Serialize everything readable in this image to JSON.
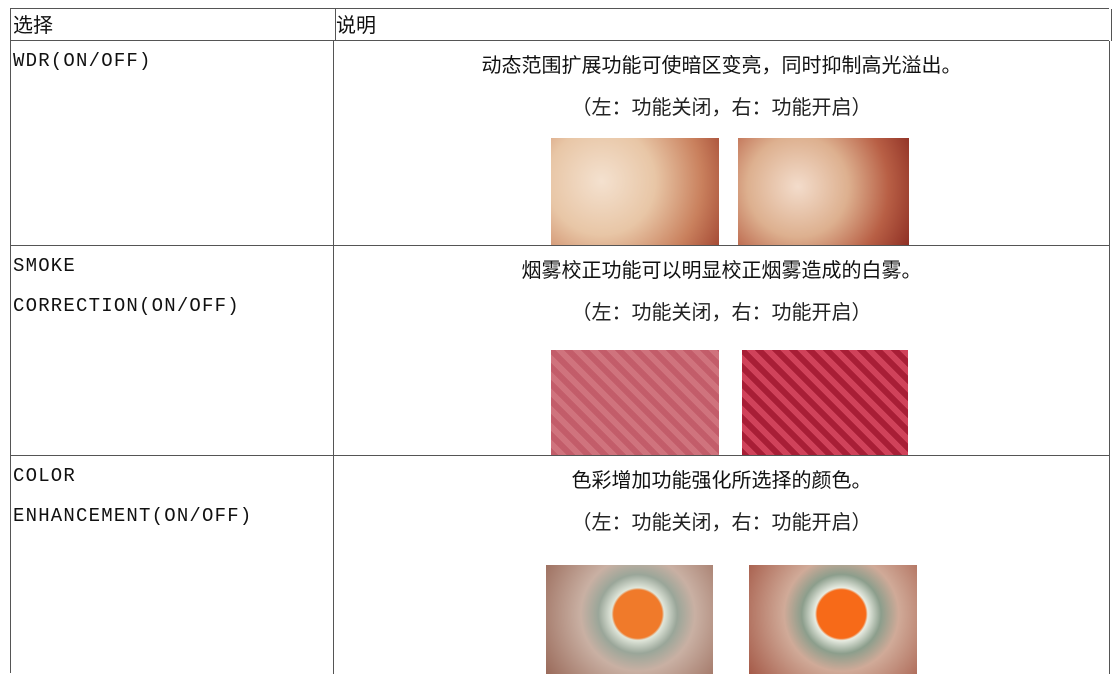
{
  "table": {
    "header": [
      "选择",
      "说明"
    ],
    "rows": [
      {
        "option": "WDR(ON/OFF)",
        "description": "动态范围扩展功能可使暗区变亮，同时抑制高光溢出。",
        "caption": "（左：功能关闭，右：功能开启）"
      },
      {
        "option": "SMOKE CORRECTION(ON/OFF)",
        "description": "烟雾校正功能可以明显校正烟雾造成的白雾。",
        "caption": "（左：功能关闭，右：功能开启）"
      },
      {
        "option": "COLOR ENHANCEMENT(ON/OFF)",
        "description": "色彩增加功能强化所选择的颜色。",
        "caption": "（左：功能关闭，右：功能开启）"
      }
    ]
  }
}
